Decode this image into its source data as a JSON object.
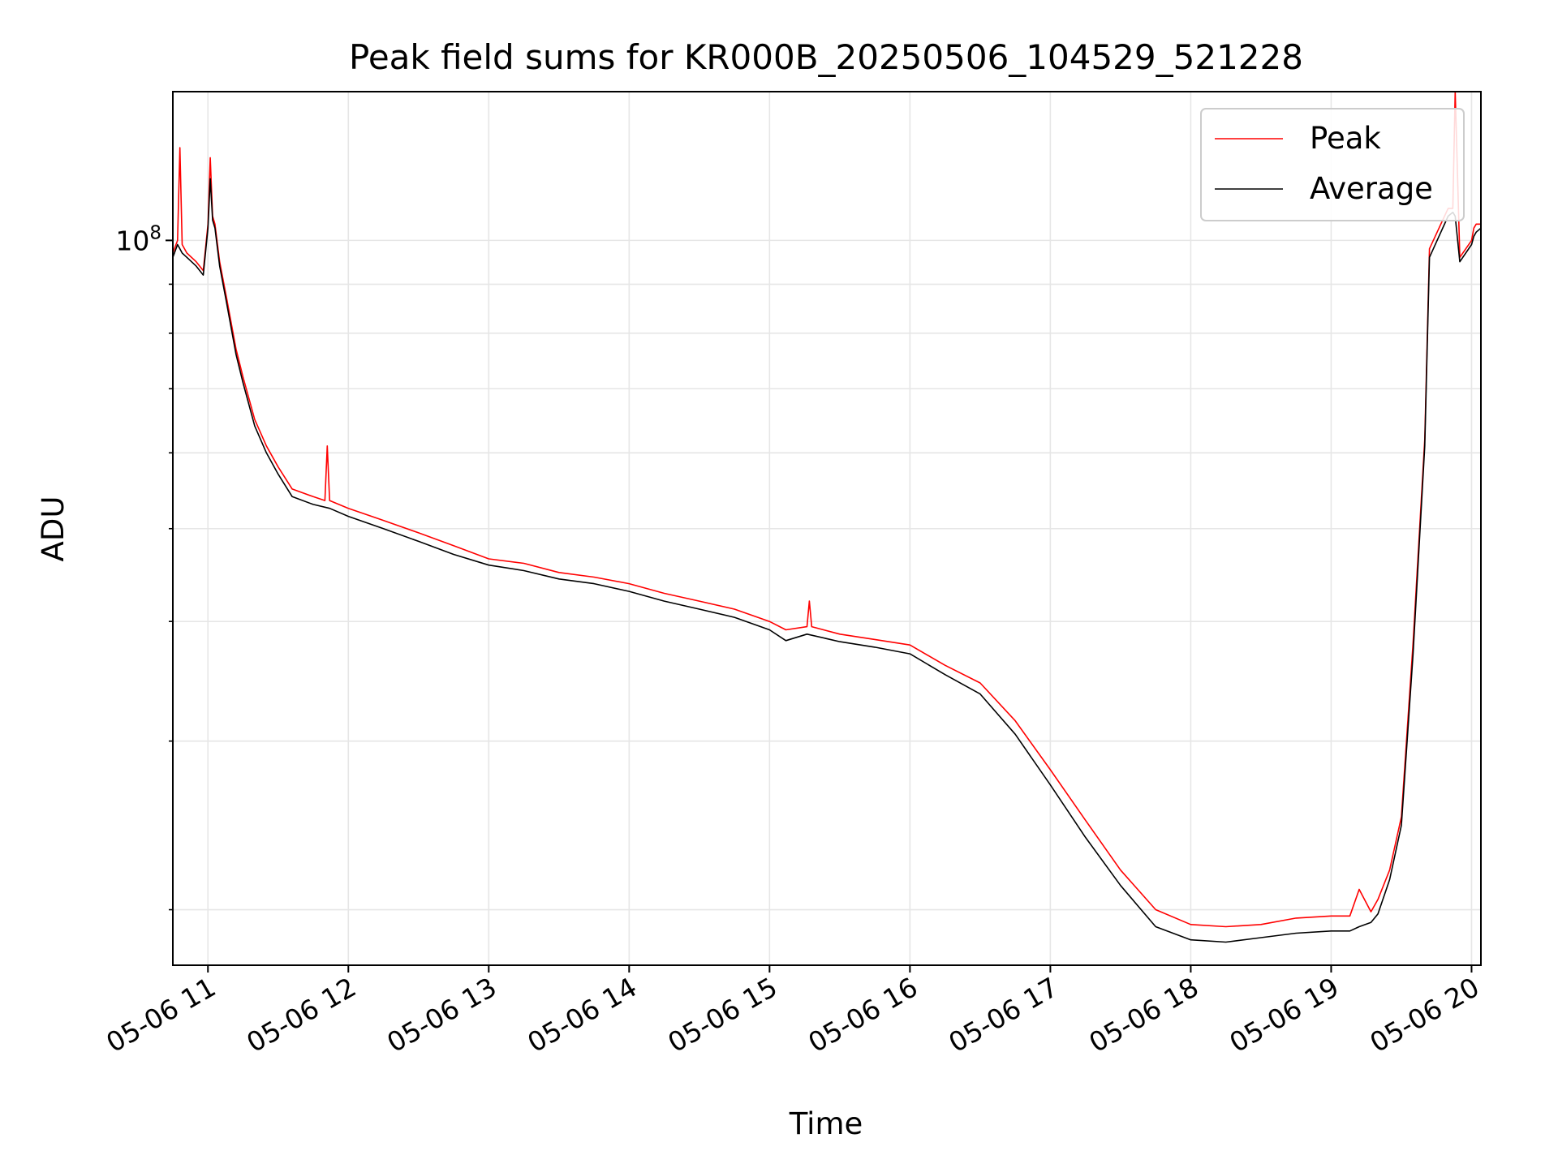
{
  "chart_data": {
    "type": "line",
    "title": "Peak field sums for KR000B_20250506_104529_521228",
    "xlabel": "Time",
    "ylabel": "ADU",
    "y_scale": "log",
    "grid": true,
    "legend_placement": "top-right",
    "xlim": [
      "2025-05-06 10:45",
      "2025-05-06 20:04"
    ],
    "ylim": [
      17500000,
      143000000
    ],
    "x_ticks": [
      {
        "t": "2025-05-06 11:00",
        "label": "05-06 11"
      },
      {
        "t": "2025-05-06 12:00",
        "label": "05-06 12"
      },
      {
        "t": "2025-05-06 13:00",
        "label": "05-06 13"
      },
      {
        "t": "2025-05-06 14:00",
        "label": "05-06 14"
      },
      {
        "t": "2025-05-06 15:00",
        "label": "05-06 15"
      },
      {
        "t": "2025-05-06 16:00",
        "label": "05-06 16"
      },
      {
        "t": "2025-05-06 17:00",
        "label": "05-06 17"
      },
      {
        "t": "2025-05-06 18:00",
        "label": "05-06 18"
      },
      {
        "t": "2025-05-06 19:00",
        "label": "05-06 19"
      },
      {
        "t": "2025-05-06 20:00",
        "label": "05-06 20"
      }
    ],
    "y_major_tick": {
      "value": 100000000,
      "label_base": "10",
      "label_exp": "8"
    },
    "y_minor_ticks": [
      20000000,
      30000000,
      40000000,
      50000000,
      60000000,
      70000000,
      80000000,
      90000000
    ],
    "series": [
      {
        "name": "Peak",
        "color": "#ff0000",
        "x": [
          "2025-05-06 10:45",
          "2025-05-06 10:47",
          "2025-05-06 10:48",
          "2025-05-06 10:49",
          "2025-05-06 10:51",
          "2025-05-06 10:55",
          "2025-05-06 10:58",
          "2025-05-06 11:00",
          "2025-05-06 11:01",
          "2025-05-06 11:02",
          "2025-05-06 11:03",
          "2025-05-06 11:05",
          "2025-05-06 11:08",
          "2025-05-06 11:12",
          "2025-05-06 11:15",
          "2025-05-06 11:20",
          "2025-05-06 11:25",
          "2025-05-06 11:30",
          "2025-05-06 11:36",
          "2025-05-06 11:45",
          "2025-05-06 11:50",
          "2025-05-06 11:51",
          "2025-05-06 11:52",
          "2025-05-06 12:00",
          "2025-05-06 12:15",
          "2025-05-06 12:30",
          "2025-05-06 12:45",
          "2025-05-06 13:00",
          "2025-05-06 13:15",
          "2025-05-06 13:30",
          "2025-05-06 13:45",
          "2025-05-06 14:00",
          "2025-05-06 14:15",
          "2025-05-06 14:30",
          "2025-05-06 14:45",
          "2025-05-06 15:00",
          "2025-05-06 15:07",
          "2025-05-06 15:16",
          "2025-05-06 15:17",
          "2025-05-06 15:18",
          "2025-05-06 15:30",
          "2025-05-06 15:45",
          "2025-05-06 16:00",
          "2025-05-06 16:15",
          "2025-05-06 16:30",
          "2025-05-06 16:45",
          "2025-05-06 17:00",
          "2025-05-06 17:15",
          "2025-05-06 17:30",
          "2025-05-06 17:45",
          "2025-05-06 18:00",
          "2025-05-06 18:15",
          "2025-05-06 18:30",
          "2025-05-06 18:45",
          "2025-05-06 19:00",
          "2025-05-06 19:08",
          "2025-05-06 19:12",
          "2025-05-06 19:17",
          "2025-05-06 19:20",
          "2025-05-06 19:25",
          "2025-05-06 19:30",
          "2025-05-06 19:35",
          "2025-05-06 19:40",
          "2025-05-06 19:42",
          "2025-05-06 19:50",
          "2025-05-06 19:52",
          "2025-05-06 19:53",
          "2025-05-06 19:55",
          "2025-05-06 20:00",
          "2025-05-06 20:01",
          "2025-05-06 20:02",
          "2025-05-06 20:04"
        ],
        "y": [
          97000000,
          100000000,
          125000000,
          99000000,
          97000000,
          95000000,
          93000000,
          104000000,
          122000000,
          106000000,
          104000000,
          95000000,
          87000000,
          77000000,
          72000000,
          65000000,
          61000000,
          58000000,
          55000000,
          54000000,
          53500000,
          61000000,
          53500000,
          52500000,
          51000000,
          49500000,
          48000000,
          46500000,
          46000000,
          45000000,
          44500000,
          43800000,
          42800000,
          42000000,
          41200000,
          40000000,
          39200000,
          39500000,
          42000000,
          39500000,
          38800000,
          38300000,
          37800000,
          36000000,
          34500000,
          31500000,
          28000000,
          24800000,
          22000000,
          20000000,
          19300000,
          19200000,
          19300000,
          19600000,
          19700000,
          19700000,
          21000000,
          19900000,
          20500000,
          22000000,
          25000000,
          38000000,
          62000000,
          98000000,
          108000000,
          108000000,
          143000000,
          96000000,
          100000000,
          103000000,
          104000000,
          104000000
        ]
      },
      {
        "name": "Average",
        "color": "#000000",
        "x": [
          "2025-05-06 10:45",
          "2025-05-06 10:47",
          "2025-05-06 10:48",
          "2025-05-06 10:49",
          "2025-05-06 10:51",
          "2025-05-06 10:55",
          "2025-05-06 10:58",
          "2025-05-06 11:00",
          "2025-05-06 11:01",
          "2025-05-06 11:02",
          "2025-05-06 11:03",
          "2025-05-06 11:05",
          "2025-05-06 11:08",
          "2025-05-06 11:12",
          "2025-05-06 11:15",
          "2025-05-06 11:20",
          "2025-05-06 11:25",
          "2025-05-06 11:30",
          "2025-05-06 11:36",
          "2025-05-06 11:45",
          "2025-05-06 11:52",
          "2025-05-06 12:00",
          "2025-05-06 12:15",
          "2025-05-06 12:30",
          "2025-05-06 12:45",
          "2025-05-06 13:00",
          "2025-05-06 13:15",
          "2025-05-06 13:30",
          "2025-05-06 13:45",
          "2025-05-06 14:00",
          "2025-05-06 14:15",
          "2025-05-06 14:30",
          "2025-05-06 14:45",
          "2025-05-06 15:00",
          "2025-05-06 15:07",
          "2025-05-06 15:16",
          "2025-05-06 15:30",
          "2025-05-06 15:45",
          "2025-05-06 16:00",
          "2025-05-06 16:15",
          "2025-05-06 16:30",
          "2025-05-06 16:45",
          "2025-05-06 17:00",
          "2025-05-06 17:15",
          "2025-05-06 17:30",
          "2025-05-06 17:45",
          "2025-05-06 18:00",
          "2025-05-06 18:15",
          "2025-05-06 18:30",
          "2025-05-06 18:45",
          "2025-05-06 19:00",
          "2025-05-06 19:08",
          "2025-05-06 19:12",
          "2025-05-06 19:17",
          "2025-05-06 19:20",
          "2025-05-06 19:25",
          "2025-05-06 19:30",
          "2025-05-06 19:35",
          "2025-05-06 19:40",
          "2025-05-06 19:42",
          "2025-05-06 19:50",
          "2025-05-06 19:52",
          "2025-05-06 19:53",
          "2025-05-06 19:55",
          "2025-05-06 20:00",
          "2025-05-06 20:01",
          "2025-05-06 20:02",
          "2025-05-06 20:04"
        ],
        "y": [
          96000000,
          99000000,
          98000000,
          97000000,
          96000000,
          94000000,
          92000000,
          103000000,
          116000000,
          105000000,
          103000000,
          94000000,
          86000000,
          76000000,
          71000000,
          64000000,
          60000000,
          57000000,
          54000000,
          53000000,
          52500000,
          51500000,
          50000000,
          48500000,
          47000000,
          45800000,
          45200000,
          44300000,
          43800000,
          43000000,
          42000000,
          41200000,
          40400000,
          39200000,
          38200000,
          38800000,
          38100000,
          37600000,
          37000000,
          35200000,
          33600000,
          30500000,
          27000000,
          23800000,
          21200000,
          19200000,
          18600000,
          18500000,
          18700000,
          18900000,
          19000000,
          19000000,
          19200000,
          19400000,
          19800000,
          21500000,
          24500000,
          37000000,
          61000000,
          96000000,
          106000000,
          107000000,
          106000000,
          95000000,
          99000000,
          101000000,
          102000000,
          103000000
        ]
      }
    ]
  }
}
